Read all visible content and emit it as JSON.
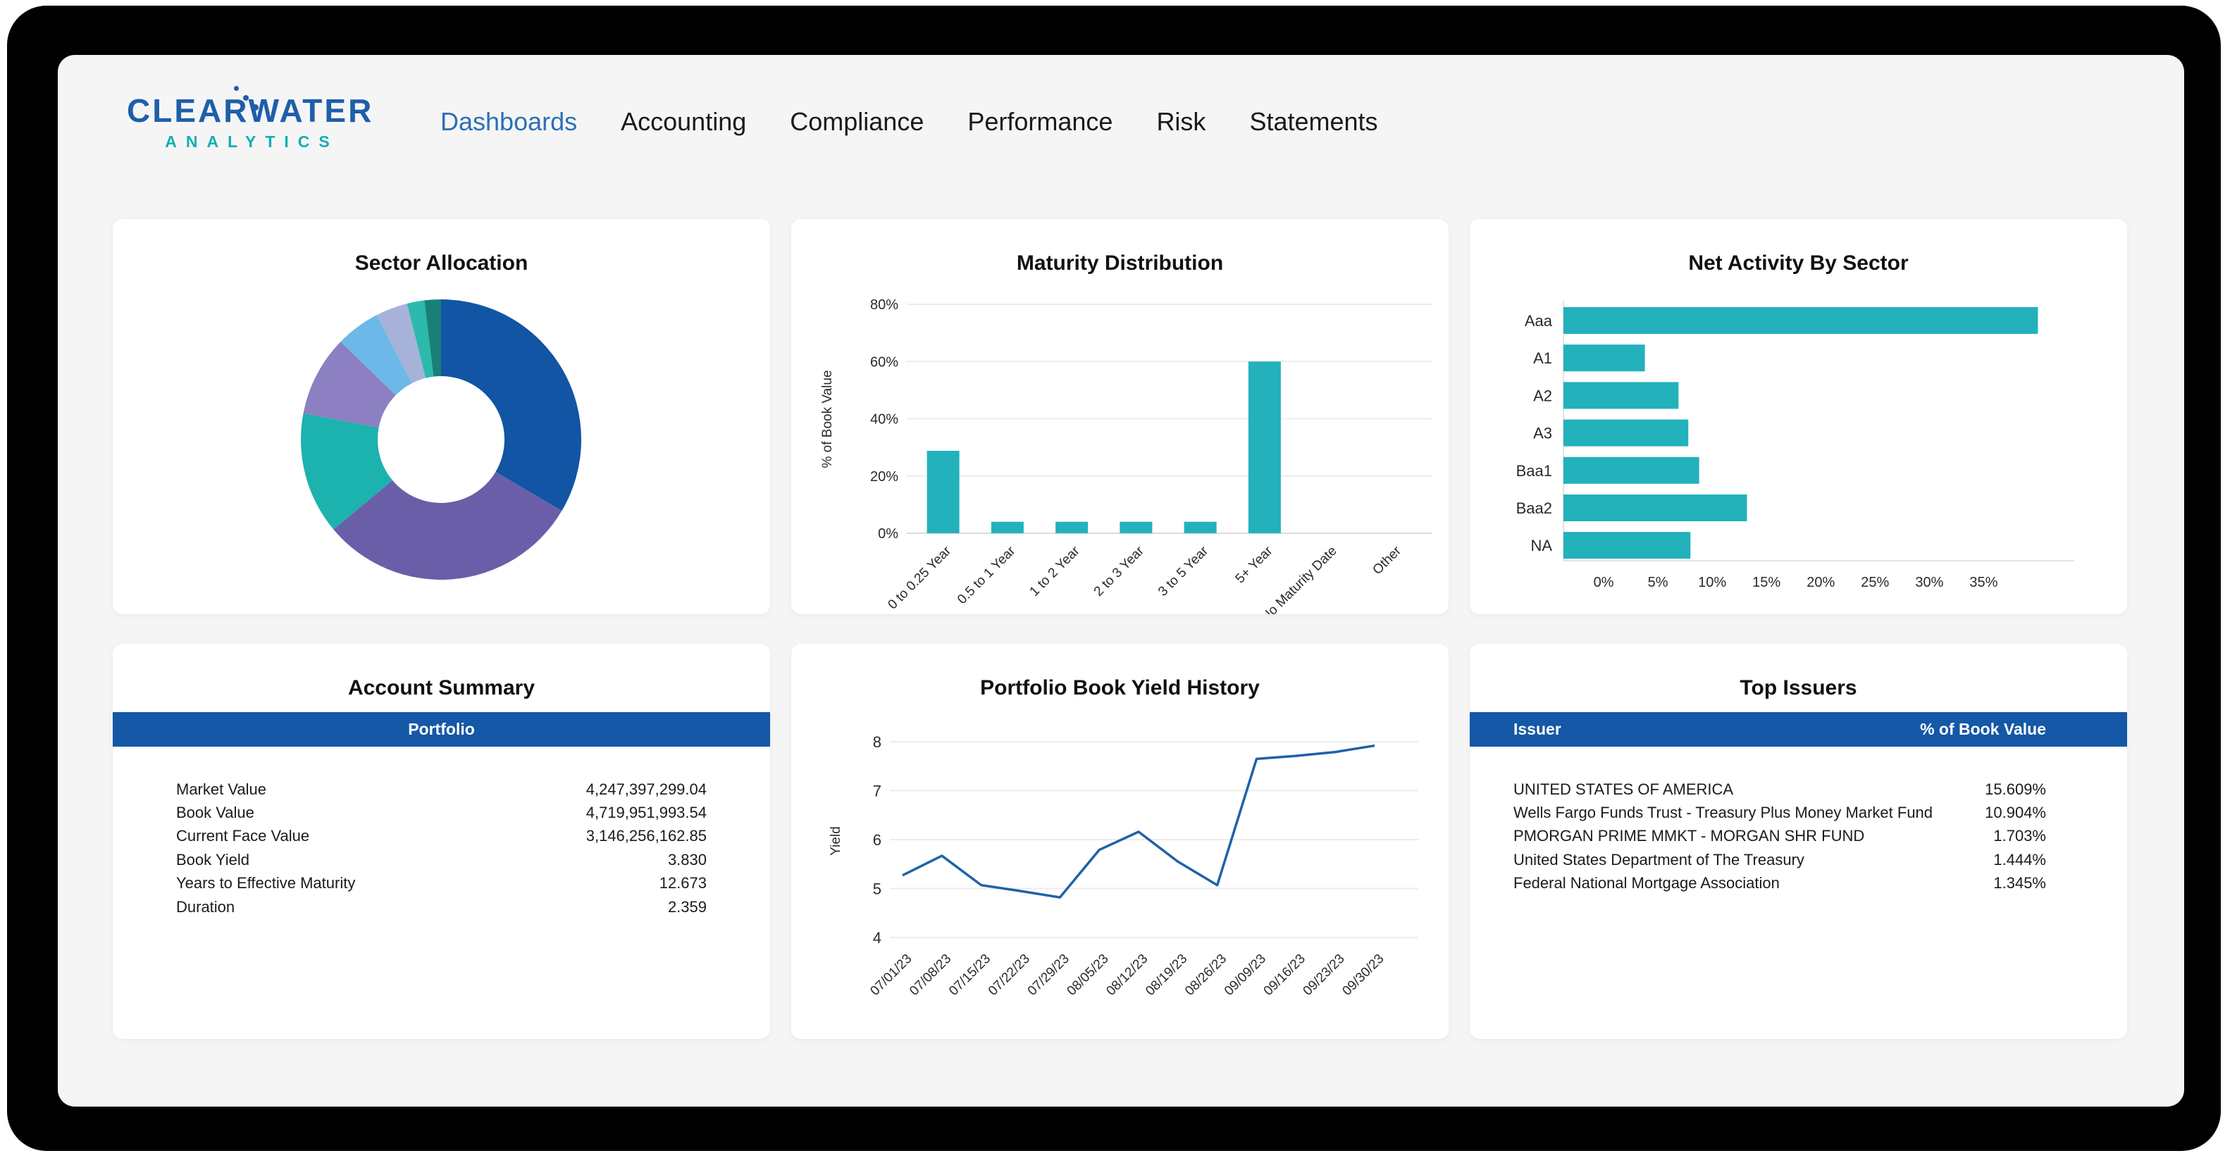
{
  "logo": {
    "line1": "CLEARWATER",
    "line2": "ANALYTICS"
  },
  "nav": {
    "items": [
      {
        "label": "Dashboards",
        "active": true
      },
      {
        "label": "Accounting",
        "active": false
      },
      {
        "label": "Compliance",
        "active": false
      },
      {
        "label": "Performance",
        "active": false
      },
      {
        "label": "Risk",
        "active": false
      },
      {
        "label": "Statements",
        "active": false
      }
    ]
  },
  "colors": {
    "frame": "#000000",
    "screen_bg": "#f5f5f6",
    "card_bg": "#ffffff",
    "header_blue": "#1458a7",
    "nav_active_blue": "#2d6fb4",
    "teal_bar": "#23b1bc",
    "line_blue": "#1e62a8"
  },
  "cards": {
    "sector_allocation": {
      "title": "Sector Allocation"
    },
    "maturity_distribution": {
      "title": "Maturity Distribution"
    },
    "net_activity": {
      "title": "Net Activity By Sector"
    },
    "account_summary": {
      "title": "Account Summary",
      "header": "Portfolio",
      "rows": [
        {
          "label": "Market Value",
          "value": "4,247,397,299.04"
        },
        {
          "label": "Book Value",
          "value": "4,719,951,993.54"
        },
        {
          "label": "Current Face Value",
          "value": "3,146,256,162.85"
        },
        {
          "label": "Book Yield",
          "value": "3.830"
        },
        {
          "label": "Years to Effective Maturity",
          "value": "12.673"
        },
        {
          "label": "Duration",
          "value": "2.359"
        }
      ]
    },
    "yield_history": {
      "title": "Portfolio Book Yield History"
    },
    "top_issuers": {
      "title": "Top Issuers",
      "columns": {
        "issuer": "Issuer",
        "pct": "% of Book Value"
      },
      "rows": [
        {
          "issuer": "UNITED STATES OF AMERICA",
          "pct": "15.609%"
        },
        {
          "issuer": "Wells Fargo Funds Trust - Treasury Plus Money Market Fund",
          "pct": "10.904%"
        },
        {
          "issuer": "PMORGAN PRIME MMKT - MORGAN SHR FUND",
          "pct": "1.703%"
        },
        {
          "issuer": "United States Department of The Treasury",
          "pct": "1.444%"
        },
        {
          "issuer": "Federal National Mortgage Association",
          "pct": "1.345%"
        }
      ]
    }
  },
  "chart_data": [
    {
      "id": "sector-allocation",
      "type": "donut",
      "title": "Sector Allocation",
      "legend": "none",
      "slices": [
        {
          "value": 33.5,
          "color": "#1155a4"
        },
        {
          "value": 30.4,
          "color": "#6a5ea8"
        },
        {
          "value": 14.1,
          "color": "#1cb2ae"
        },
        {
          "value": 9.3,
          "color": "#8c80c2"
        },
        {
          "value": 5.1,
          "color": "#6cb8e9"
        },
        {
          "value": 3.7,
          "color": "#a6b2d9"
        },
        {
          "value": 2.0,
          "color": "#2bb9ab"
        },
        {
          "value": 1.9,
          "color": "#1a8077"
        }
      ]
    },
    {
      "id": "maturity-distribution",
      "type": "bar",
      "title": "Maturity Distribution",
      "categories": [
        "0 to 0.25 Year",
        "0.5 to 1 Year",
        "1 to 2 Year",
        "2 to 3 Year",
        "3 to 5 Year",
        "5+ Year",
        "No Maturity Date",
        "Other"
      ],
      "values": [
        28.8,
        4,
        4,
        4,
        4,
        60,
        0,
        0
      ],
      "yticks": [
        "0%",
        "20%",
        "40%",
        "60%",
        "80%"
      ],
      "ytick_values": [
        0,
        20,
        40,
        60,
        80
      ],
      "ylim": [
        0,
        80
      ],
      "ylabel": "% of Book Value",
      "bar_color": "#23b1bc",
      "grid": true
    },
    {
      "id": "net-activity",
      "type": "hbar",
      "title": "Net Activity By Sector",
      "categories": [
        "Aaa",
        "A1",
        "A2",
        "A3",
        "Baa1",
        "Baa2",
        "NA"
      ],
      "values": [
        40.0,
        3.8,
        6.9,
        7.8,
        8.8,
        13.2,
        8.0
      ],
      "xticks": [
        "0%",
        "5%",
        "10%",
        "15%",
        "20%",
        "25%",
        "30%",
        "35%"
      ],
      "xtick_values": [
        0,
        5,
        10,
        15,
        20,
        25,
        30,
        35
      ],
      "xlim": [
        -3.7,
        42.5
      ],
      "bar_color": "#23b1bc",
      "grid": false
    },
    {
      "id": "yield-history",
      "type": "line",
      "title": "Portfolio Book Yield History",
      "x": [
        "07/01/23",
        "07/08/23",
        "07/15/23",
        "07/22/23",
        "07/29/23",
        "08/05/23",
        "08/12/23",
        "08/19/23",
        "08/26/23",
        "09/09/23",
        "09/16/23",
        "09/23/23",
        "09/30/23"
      ],
      "values": [
        5.27,
        5.67,
        5.07,
        4.95,
        4.82,
        5.79,
        6.16,
        5.55,
        5.07,
        7.65,
        7.71,
        7.79,
        7.92
      ],
      "yticks": [
        "4",
        "5",
        "6",
        "7",
        "8"
      ],
      "ytick_values": [
        4,
        5,
        6,
        7,
        8
      ],
      "ylim": [
        4,
        8
      ],
      "ylabel": "Yield",
      "line_color": "#1e62a8",
      "grid": true
    }
  ]
}
